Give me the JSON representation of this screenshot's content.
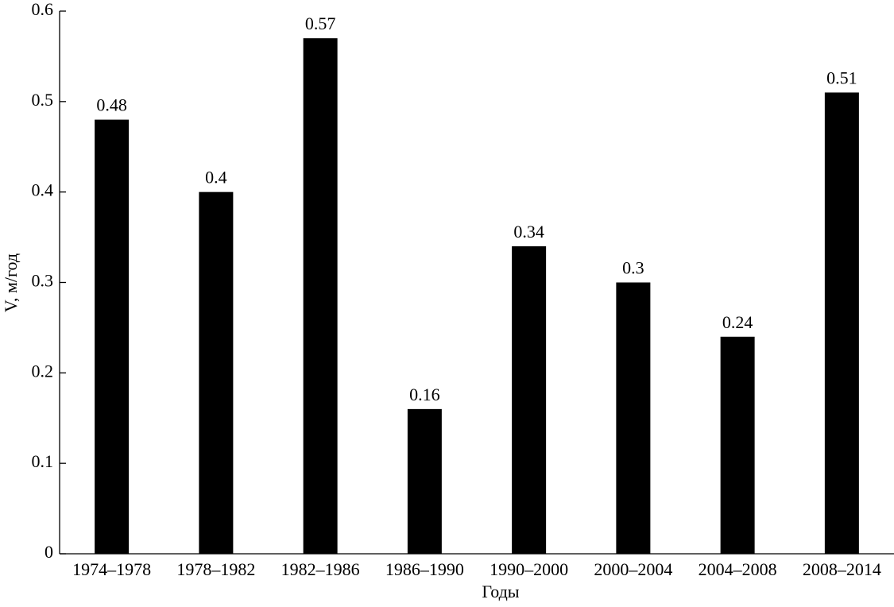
{
  "chart_data": {
    "type": "bar",
    "categories": [
      "1974–1978",
      "1978–1982",
      "1982–1986",
      "1986–1990",
      "1990–2000",
      "2000–2004",
      "2004–2008",
      "2008–2014"
    ],
    "values": [
      0.48,
      0.4,
      0.57,
      0.16,
      0.34,
      0.3,
      0.24,
      0.51
    ],
    "color": "#000000",
    "xlabel": "Годы",
    "ylabel": "V, м/год",
    "ylim": [
      0,
      0.6
    ],
    "yticks": [
      0,
      0.1,
      0.2,
      0.3,
      0.4,
      0.5,
      0.6
    ],
    "grid": false
  }
}
